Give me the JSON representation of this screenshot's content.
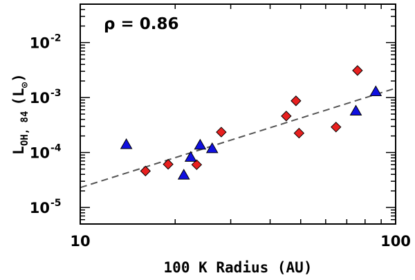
{
  "chart_data": {
    "type": "scatter",
    "title": "",
    "xlabel": "100 K Radius (AU)",
    "ylabel": {
      "main": "L",
      "subscript": "OH, 84",
      "unit_open": "(L",
      "unit_symbol": "⊙",
      "unit_close": ")"
    },
    "xscale": "log",
    "yscale": "log",
    "xlim": [
      10,
      100
    ],
    "ylim": [
      5e-06,
      0.05
    ],
    "annotation": "ρ = 0.86",
    "x_ticks": [
      {
        "value": 10,
        "label": "10"
      },
      {
        "value": 100,
        "label": "100"
      }
    ],
    "y_ticks": [
      {
        "value": 1e-05,
        "base": "10",
        "exp": "-5"
      },
      {
        "value": 0.0001,
        "base": "10",
        "exp": "-4"
      },
      {
        "value": 0.001,
        "base": "10",
        "exp": "-3"
      },
      {
        "value": 0.01,
        "base": "10",
        "exp": "-2"
      }
    ],
    "series": [
      {
        "name": "diamonds",
        "marker": "diamond",
        "color": "#e8201f",
        "points": [
          {
            "x": 16.1,
            "y": 4.6e-05
          },
          {
            "x": 19.0,
            "y": 6.1e-05
          },
          {
            "x": 23.4,
            "y": 6e-05
          },
          {
            "x": 28.0,
            "y": 0.000235
          },
          {
            "x": 45.0,
            "y": 0.00046
          },
          {
            "x": 48.3,
            "y": 0.00087
          },
          {
            "x": 49.4,
            "y": 0.000225
          },
          {
            "x": 64.7,
            "y": 0.00029
          },
          {
            "x": 75.7,
            "y": 0.0031
          }
        ]
      },
      {
        "name": "triangles",
        "marker": "triangle",
        "color": "#1010e0",
        "points": [
          {
            "x": 14.0,
            "y": 0.00014
          },
          {
            "x": 21.3,
            "y": 3.9e-05
          },
          {
            "x": 22.4,
            "y": 8.2e-05
          },
          {
            "x": 24.0,
            "y": 0.000137
          },
          {
            "x": 26.2,
            "y": 0.000118
          },
          {
            "x": 74.8,
            "y": 0.00057
          },
          {
            "x": 86.5,
            "y": 0.00128
          }
        ]
      }
    ],
    "fit_line": {
      "style": "dashed",
      "color": "#555555",
      "x": [
        10,
        100
      ],
      "y": [
        2.3e-05,
        0.00148
      ]
    }
  }
}
